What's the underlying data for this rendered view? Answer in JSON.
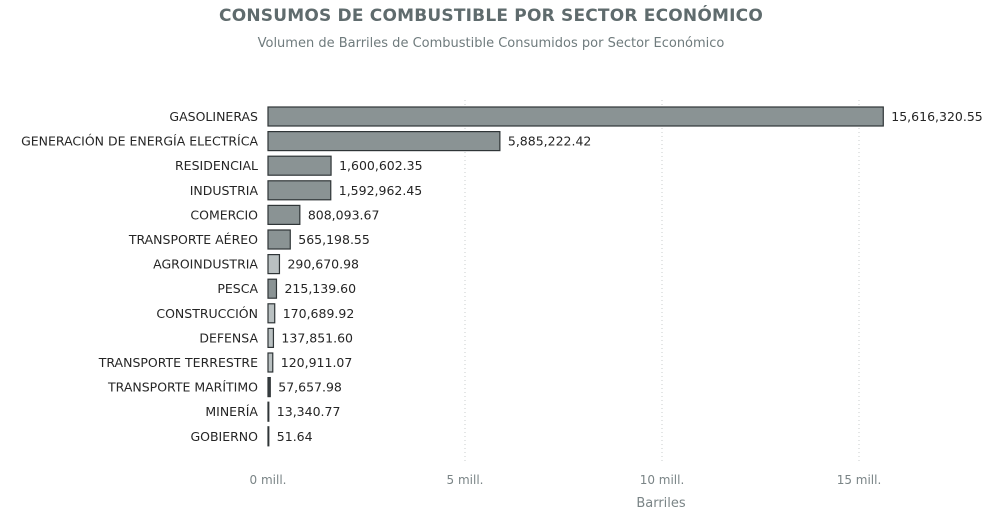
{
  "chart_data": {
    "type": "bar",
    "orientation": "horizontal",
    "title": "CONSUMOS DE COMBUSTIBLE POR SECTOR ECONÓMICO",
    "subtitle": "Volumen de Barriles de Combustible Consumidos por Sector Económico",
    "xlabel": "Barriles",
    "ylabel": "",
    "xlim": [
      0,
      18000000
    ],
    "grid": "vertical dotted",
    "ticks": [
      {
        "value": 0,
        "label": "0 mill."
      },
      {
        "value": 5000000,
        "label": "5 mill."
      },
      {
        "value": 10000000,
        "label": "10 mill."
      },
      {
        "value": 15000000,
        "label": "15 mill."
      }
    ],
    "categories": [
      "GASOLINERAS",
      "GENERACIÓN DE ENERGÍA ELECTRÍCA",
      "RESIDENCIAL",
      "INDUSTRIA",
      "COMERCIO",
      "TRANSPORTE AÉREO",
      "AGROINDUSTRIA",
      "PESCA",
      "CONSTRUCCIÓN",
      "DEFENSA",
      "TRANSPORTE TERRESTRE",
      "TRANSPORTE MARÍTIMO",
      "MINERÍA",
      "GOBIERNO"
    ],
    "values": [
      15616320.55,
      5885222.42,
      1600602.35,
      1592962.45,
      808093.67,
      565198.55,
      290670.98,
      215139.6,
      170689.92,
      137851.6,
      120911.07,
      57657.98,
      13340.77,
      51.64
    ],
    "value_labels": [
      "15,616,320.55",
      "5,885,222.42",
      "1,600,602.35",
      "1,592,962.45",
      "808,093.67",
      "565,198.55",
      "290,670.98",
      "215,139.60",
      "170,689.92",
      "137,851.60",
      "120,911.07",
      "57,657.98",
      "13,340.77",
      "51.64"
    ],
    "bar_colors": [
      "#8a9394",
      "#8a9394",
      "#8a9394",
      "#8a9394",
      "#8a9394",
      "#8a9394",
      "#b9c0c1",
      "#8a9394",
      "#b9c0c1",
      "#b9c0c1",
      "#b9c0c1",
      "#3a4244",
      "#8a9394",
      "#8a9394"
    ],
    "bar_stroke": "#2f3537",
    "colors": {
      "title": "#5f6b6d",
      "text": "#252525",
      "axis_text": "#7a8486",
      "grid": "#c9cdce"
    }
  }
}
